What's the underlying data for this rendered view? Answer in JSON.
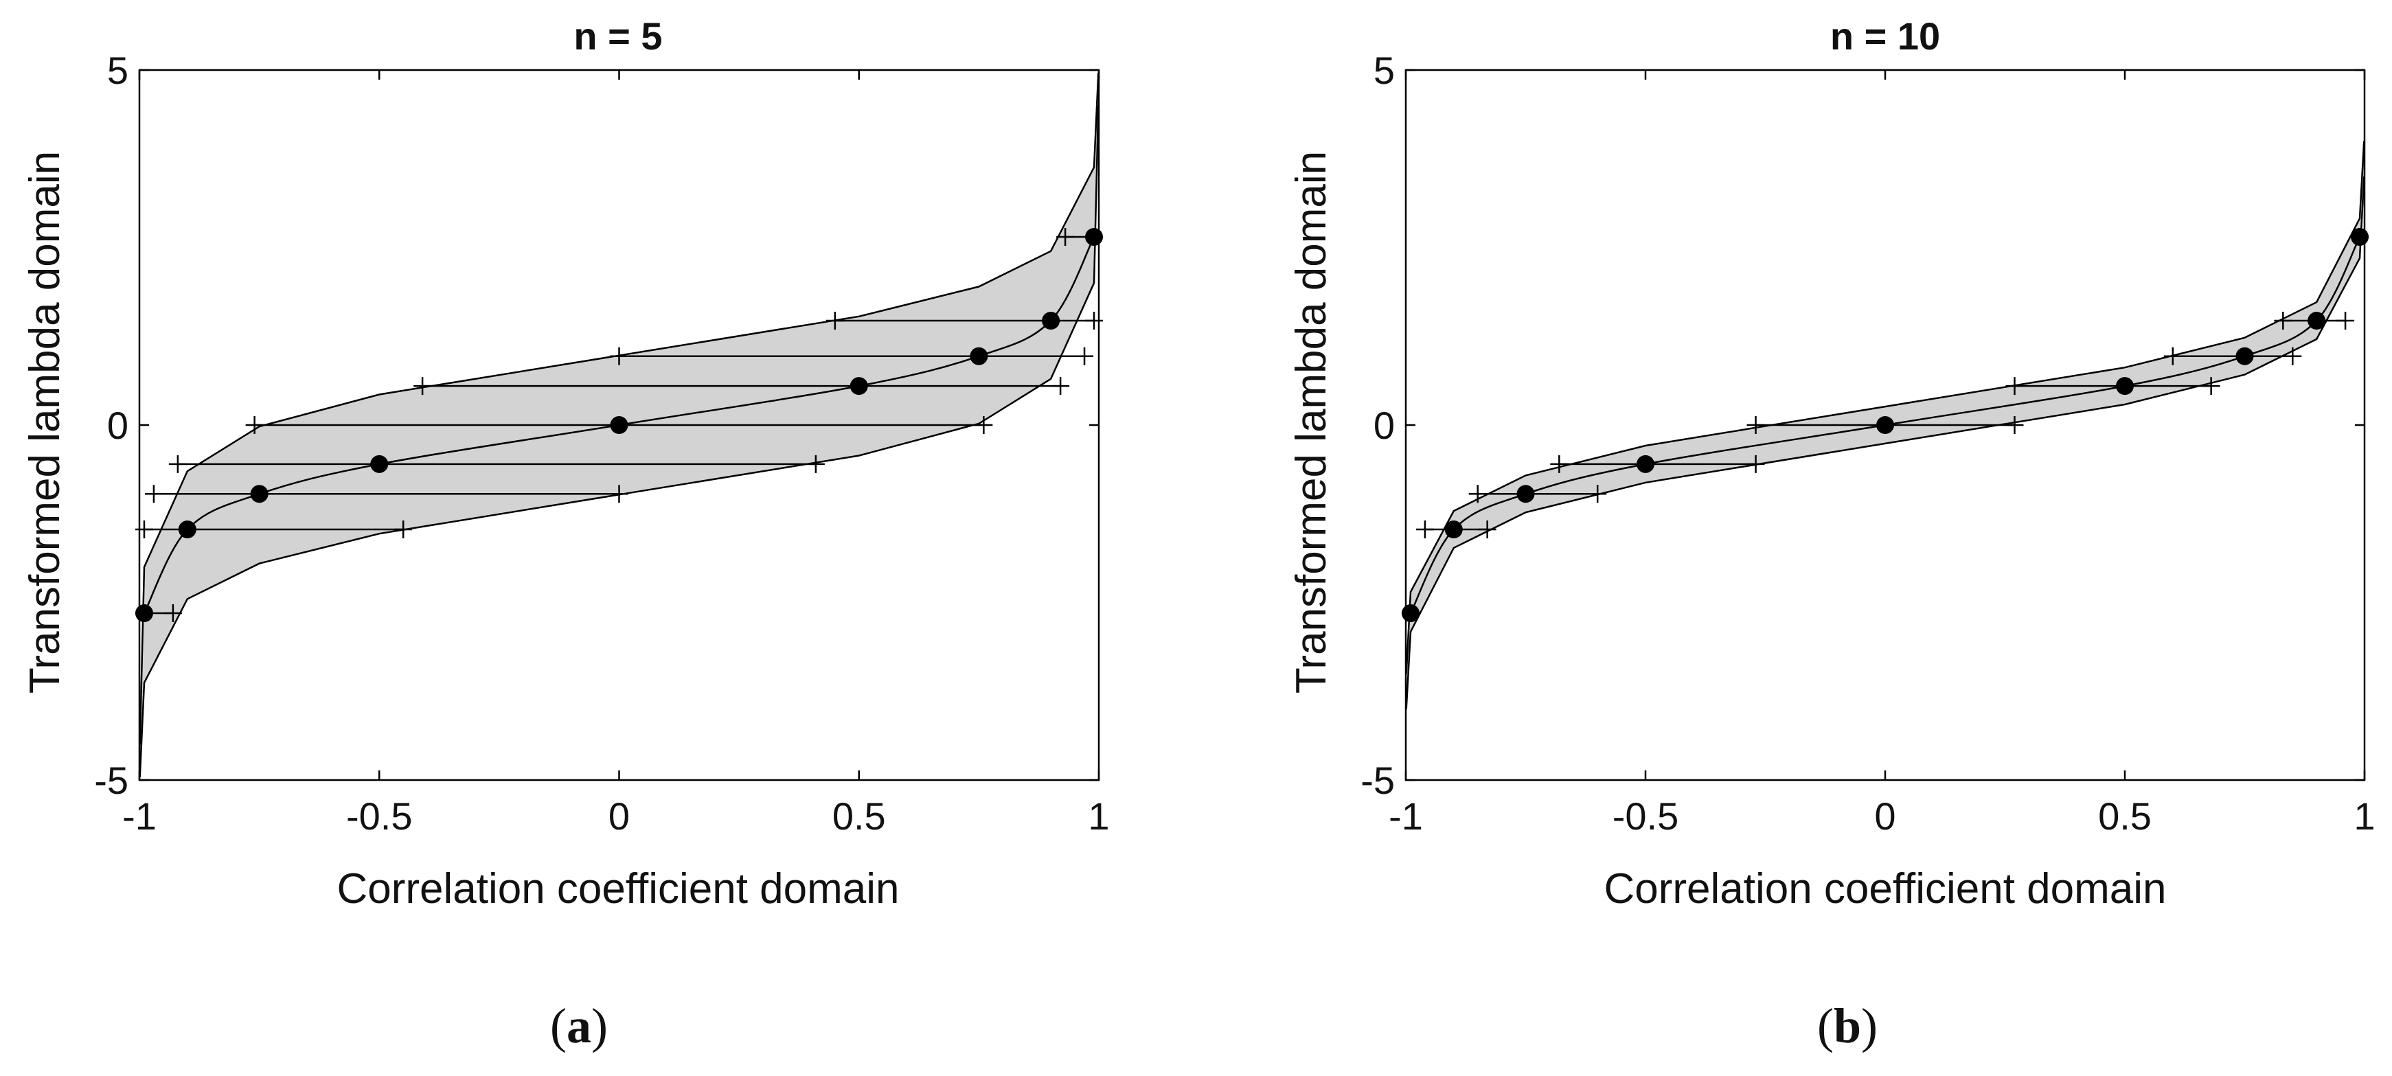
{
  "figure": {
    "panels": [
      {
        "caption_open": "(",
        "caption_letter": "a",
        "caption_close": ")"
      },
      {
        "caption_open": "(",
        "caption_letter": "b",
        "caption_close": ")"
      }
    ]
  },
  "colors": {
    "band_fill": "#d3d3d3",
    "line": "#000000",
    "axis": "#000000",
    "text": "#111111"
  },
  "chart_data": [
    {
      "type": "line",
      "title": "n = 5",
      "xlabel": "Correlation coefficient domain",
      "ylabel": "Transformed lambda domain",
      "xlim": [
        -1,
        1
      ],
      "ylim": [
        -5,
        5
      ],
      "xticks": [
        -1,
        -0.5,
        0,
        0.5,
        1
      ],
      "xtick_labels": [
        "-1",
        "-0.5",
        "0",
        "0.5",
        "1"
      ],
      "yticks": [
        -5,
        0,
        5
      ],
      "ytick_labels": [
        "-5",
        "0",
        "5"
      ],
      "grid": false,
      "n": 5,
      "series": [
        {
          "name": "mean curve",
          "x": [
            -0.99,
            -0.9,
            -0.75,
            -0.5,
            0,
            0.5,
            0.75,
            0.9,
            0.99
          ],
          "y": [
            -2.65,
            -1.47,
            -0.97,
            -0.55,
            0,
            0.55,
            0.97,
            1.47,
            2.65
          ]
        },
        {
          "name": "upper band",
          "x": [
            -0.999,
            -0.99,
            -0.9,
            -0.75,
            -0.5,
            0,
            0.5,
            0.75,
            0.9,
            0.99,
            0.999
          ],
          "y": [
            -4.5,
            -2.0,
            -0.65,
            -0.02,
            0.43,
            0.98,
            1.53,
            1.95,
            2.45,
            3.63,
            4.96
          ]
        },
        {
          "name": "lower band",
          "x": [
            -0.999,
            -0.99,
            -0.9,
            -0.75,
            -0.5,
            0,
            0.5,
            0.75,
            0.9,
            0.99,
            0.999
          ],
          "y": [
            -4.96,
            -3.63,
            -2.45,
            -1.95,
            -1.53,
            -0.98,
            -0.43,
            0.02,
            0.65,
            2.0,
            4.5
          ]
        },
        {
          "name": "marked points",
          "x": [
            -0.99,
            -0.9,
            -0.75,
            -0.5,
            0,
            0.5,
            0.75,
            0.9,
            0.99
          ],
          "y": [
            -2.65,
            -1.47,
            -0.97,
            -0.55,
            0,
            0.55,
            0.97,
            1.47,
            2.65
          ]
        }
      ],
      "intervals": [
        {
          "y": -2.65,
          "lower": -0.99,
          "upper": -0.93
        },
        {
          "y": -1.47,
          "lower": -0.99,
          "upper": -0.45
        },
        {
          "y": -0.97,
          "lower": -0.97,
          "upper": 0.0
        },
        {
          "y": -0.55,
          "lower": -0.92,
          "upper": 0.41
        },
        {
          "y": 0.0,
          "lower": -0.76,
          "upper": 0.76
        },
        {
          "y": 0.55,
          "lower": -0.41,
          "upper": 0.92
        },
        {
          "y": 0.97,
          "lower": 0.0,
          "upper": 0.97
        },
        {
          "y": 1.47,
          "lower": 0.45,
          "upper": 0.99
        },
        {
          "y": 2.65,
          "lower": 0.93,
          "upper": 0.99
        }
      ]
    },
    {
      "type": "line",
      "title": "n = 10",
      "xlabel": "Correlation coefficient domain",
      "ylabel": "Transformed lambda domain",
      "xlim": [
        -1,
        1
      ],
      "ylim": [
        -5,
        5
      ],
      "xticks": [
        -1,
        -0.5,
        0,
        0.5,
        1
      ],
      "xtick_labels": [
        "-1",
        "-0.5",
        "0",
        "0.5",
        "1"
      ],
      "yticks": [
        -5,
        0,
        5
      ],
      "ytick_labels": [
        "-5",
        "0",
        "5"
      ],
      "grid": false,
      "n": 10,
      "series": [
        {
          "name": "mean curve",
          "x": [
            -0.99,
            -0.9,
            -0.75,
            -0.5,
            0,
            0.5,
            0.75,
            0.9,
            0.99
          ],
          "y": [
            -2.65,
            -1.47,
            -0.97,
            -0.55,
            0,
            0.55,
            0.97,
            1.47,
            2.65
          ]
        },
        {
          "name": "upper band",
          "x": [
            -0.999,
            -0.99,
            -0.9,
            -0.75,
            -0.5,
            0,
            0.5,
            0.75,
            0.9,
            0.99,
            0.999
          ],
          "y": [
            -3.5,
            -2.35,
            -1.21,
            -0.71,
            -0.29,
            0.26,
            0.81,
            1.23,
            1.73,
            2.91,
            4.0
          ]
        },
        {
          "name": "lower band",
          "x": [
            -0.999,
            -0.99,
            -0.9,
            -0.75,
            -0.5,
            0,
            0.5,
            0.75,
            0.9,
            0.99,
            0.999
          ],
          "y": [
            -4.0,
            -2.91,
            -1.73,
            -1.23,
            -0.81,
            -0.26,
            0.29,
            0.71,
            1.21,
            2.35,
            3.5
          ]
        },
        {
          "name": "marked points",
          "x": [
            -0.99,
            -0.9,
            -0.75,
            -0.5,
            0,
            0.5,
            0.75,
            0.9,
            0.99
          ],
          "y": [
            -2.65,
            -1.47,
            -0.97,
            -0.55,
            0,
            0.55,
            0.97,
            1.47,
            2.65
          ]
        }
      ],
      "intervals": [
        {
          "y": -2.65,
          "lower": -0.99,
          "upper": -0.99
        },
        {
          "y": -1.47,
          "lower": -0.96,
          "upper": -0.83
        },
        {
          "y": -0.97,
          "lower": -0.85,
          "upper": -0.6
        },
        {
          "y": -0.55,
          "lower": -0.68,
          "upper": -0.27
        },
        {
          "y": 0.0,
          "lower": -0.27,
          "upper": 0.27
        },
        {
          "y": 0.55,
          "lower": 0.27,
          "upper": 0.68
        },
        {
          "y": 0.97,
          "lower": 0.6,
          "upper": 0.85
        },
        {
          "y": 1.47,
          "lower": 0.83,
          "upper": 0.96
        },
        {
          "y": 2.65,
          "lower": 0.99,
          "upper": 0.99
        }
      ]
    }
  ]
}
